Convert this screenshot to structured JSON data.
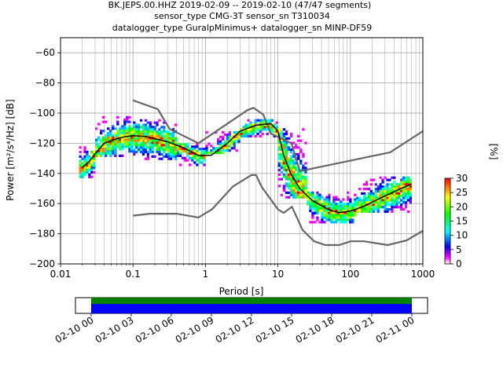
{
  "chart_data": {
    "type": "line",
    "title_lines": [
      "BK.JEPS.00.HHZ   2019-02-09 -- 2019-02-10  (47/47 segments)",
      "sensor_type CMG-3T sensor_sn T310034",
      "datalogger_type GuralpMinimus+ datalogger_sn MINP-DF59"
    ],
    "xlabel": "Period [s]",
    "ylabel": "Power [m²/s⁴/Hz] [dB]",
    "x_scale": "log",
    "xlim": [
      0.01,
      1000
    ],
    "ylim": [
      -200,
      -50
    ],
    "x_ticks": [
      {
        "value": 0.01,
        "label": "0.01"
      },
      {
        "value": 0.1,
        "label": "0.1"
      },
      {
        "value": 1,
        "label": "1"
      },
      {
        "value": 10,
        "label": "10"
      },
      {
        "value": 100,
        "label": "100"
      },
      {
        "value": 1000,
        "label": "1000"
      }
    ],
    "y_ticks": [
      -60,
      -80,
      -100,
      -120,
      -140,
      -160,
      -180,
      -200
    ],
    "grid": true,
    "series": [
      {
        "role": "noise-model-high",
        "color": "#666666",
        "x": [
          0.1,
          0.22,
          0.32,
          0.8,
          3.8,
          4.6,
          6.3,
          7.9,
          15.4,
          20,
          354.8,
          1000
        ],
        "y": [
          -91.5,
          -97.4,
          -110.5,
          -120,
          -98,
          -96.5,
          -101,
          -113.5,
          -120,
          -138.5,
          -126,
          -112
        ]
      },
      {
        "role": "noise-model-low",
        "color": "#666666",
        "x": [
          0.1,
          0.17,
          0.4,
          0.8,
          1.24,
          2.4,
          4.3,
          5,
          6,
          10,
          12,
          15.6,
          21.9,
          31.6,
          45,
          70,
          101,
          154,
          328,
          600,
          1000
        ],
        "y": [
          -168,
          -166.7,
          -166.7,
          -169.2,
          -163.7,
          -148.6,
          -141.1,
          -141.1,
          -149,
          -163.8,
          -166.2,
          -162.1,
          -177.5,
          -185,
          -187.5,
          -187.5,
          -185,
          -185,
          -187.5,
          -184.4,
          -178
        ]
      },
      {
        "role": "mode",
        "color": "#000000",
        "x": [
          0.02,
          0.025,
          0.03,
          0.04,
          0.06,
          0.08,
          0.1,
          0.15,
          0.2,
          0.3,
          0.5,
          0.8,
          1.2,
          2,
          3,
          5,
          8,
          10,
          12,
          15,
          20,
          30,
          50,
          70,
          100,
          150,
          200,
          300,
          500,
          700
        ],
        "y": [
          -136,
          -132,
          -127,
          -120,
          -117,
          -115.5,
          -115,
          -115.5,
          -117,
          -119,
          -123,
          -128,
          -128,
          -120,
          -112,
          -108,
          -107,
          -112,
          -128,
          -140,
          -150,
          -158,
          -164,
          -166,
          -165,
          -162,
          -159,
          -155,
          -150,
          -147
        ]
      }
    ],
    "ppsd_density": {
      "description": "probabilistic PSD histogram",
      "period_bands": [
        {
          "x_from": 0.018,
          "x_to": 0.03,
          "y_lo": -142,
          "y_hi": -122
        },
        {
          "x_from": 0.03,
          "x_to": 0.1,
          "y_lo": -128,
          "y_hi": -102
        },
        {
          "x_from": 0.1,
          "x_to": 0.4,
          "y_lo": -130,
          "y_hi": -104
        },
        {
          "x_from": 0.4,
          "x_to": 1.0,
          "y_lo": -134,
          "y_hi": -120
        },
        {
          "x_from": 1.0,
          "x_to": 3.0,
          "y_lo": -126,
          "y_hi": -112
        },
        {
          "x_from": 3.0,
          "x_to": 10,
          "y_lo": -116,
          "y_hi": -104
        },
        {
          "x_from": 10,
          "x_to": 25,
          "y_lo": -156,
          "y_hi": -110
        },
        {
          "x_from": 25,
          "x_to": 120,
          "y_lo": -172,
          "y_hi": -152
        },
        {
          "x_from": 120,
          "x_to": 700,
          "y_lo": -166,
          "y_hi": -142
        }
      ]
    },
    "colorbar": {
      "label": "[%]",
      "range": [
        0,
        30
      ],
      "ticks": [
        0,
        5,
        10,
        15,
        20,
        25,
        30
      ],
      "colormap": [
        "#ffffff",
        "#ff00ff",
        "#0000ff",
        "#00ffff",
        "#00ff00",
        "#ffff00",
        "#ff0000"
      ]
    },
    "coverage": {
      "ticks": [
        "02-10 00",
        "02-10 03",
        "02-10 06",
        "02-10 09",
        "02-10 12",
        "02-10 15",
        "02-10 18",
        "02-10 21",
        "02-11 00"
      ],
      "data_color": "#008000",
      "segment_color": "#0000ff",
      "start_fraction": 0.0,
      "end_fraction": 1.0
    }
  }
}
